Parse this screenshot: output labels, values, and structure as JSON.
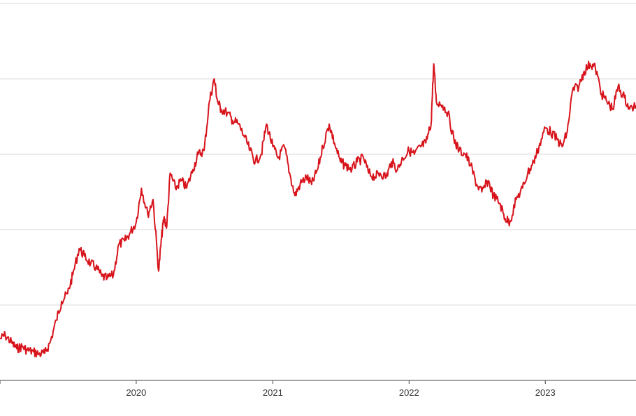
{
  "chart_data": {
    "type": "line",
    "title": "",
    "xlabel": "",
    "ylabel": "",
    "x_ticks": [
      "2020",
      "2021",
      "2022",
      "2023"
    ],
    "xlim": [
      "2019-01-01",
      "2023-09-01"
    ],
    "ylim": [
      0,
      5
    ],
    "grid": true,
    "legend": "none",
    "line_color": "#d7141c",
    "grid_color": "#d9d9d9",
    "axis_color": "#444444",
    "series": [
      {
        "x": [
          "2019-01-01",
          "2019-01-15",
          "2019-02-01",
          "2019-02-15",
          "2019-03-01",
          "2019-03-15",
          "2019-04-01",
          "2019-04-15",
          "2019-05-01",
          "2019-05-15",
          "2019-06-01",
          "2019-06-15",
          "2019-07-01",
          "2019-07-15",
          "2019-08-01",
          "2019-08-15",
          "2019-09-01",
          "2019-09-15",
          "2019-10-01",
          "2019-10-15",
          "2019-11-01",
          "2019-11-15",
          "2019-12-01",
          "2019-12-15",
          "2020-01-01",
          "2020-01-15",
          "2020-02-01",
          "2020-02-15",
          "2020-03-01",
          "2020-03-09",
          "2020-03-15",
          "2020-03-23",
          "2020-04-01",
          "2020-04-15",
          "2020-05-01",
          "2020-05-15",
          "2020-06-01",
          "2020-06-15",
          "2020-07-01",
          "2020-07-15",
          "2020-07-28",
          "2020-08-06",
          "2020-08-15",
          "2020-09-01",
          "2020-09-15",
          "2020-10-01",
          "2020-10-15",
          "2020-11-01",
          "2020-11-15",
          "2020-12-01",
          "2020-12-15",
          "2021-01-01",
          "2021-01-15",
          "2021-02-01",
          "2021-02-15",
          "2021-03-01",
          "2021-03-15",
          "2021-04-01",
          "2021-04-15",
          "2021-05-01",
          "2021-05-15",
          "2021-06-01",
          "2021-06-15",
          "2021-07-01",
          "2021-07-15",
          "2021-08-01",
          "2021-08-15",
          "2021-09-01",
          "2021-09-15",
          "2021-10-01",
          "2021-10-15",
          "2021-11-01",
          "2021-11-15",
          "2021-12-01",
          "2021-12-15",
          "2022-01-01",
          "2022-01-15",
          "2022-02-01",
          "2022-02-15",
          "2022-03-01",
          "2022-03-08",
          "2022-03-15",
          "2022-04-01",
          "2022-04-15",
          "2022-05-01",
          "2022-05-15",
          "2022-06-01",
          "2022-06-15",
          "2022-07-01",
          "2022-07-15",
          "2022-08-01",
          "2022-08-15",
          "2022-09-01",
          "2022-09-15",
          "2022-09-28",
          "2022-10-15",
          "2022-11-01",
          "2022-11-15",
          "2022-12-01",
          "2022-12-15",
          "2023-01-01",
          "2023-01-15",
          "2023-02-01",
          "2023-02-15",
          "2023-03-01",
          "2023-03-15",
          "2023-04-01",
          "2023-04-15",
          "2023-05-01",
          "2023-05-15",
          "2023-06-01",
          "2023-06-15",
          "2023-07-01",
          "2023-07-15",
          "2023-08-01",
          "2023-08-15",
          "2023-09-01"
        ],
        "y": [
          0.55,
          0.6,
          0.5,
          0.42,
          0.45,
          0.4,
          0.38,
          0.35,
          0.36,
          0.5,
          0.8,
          1.05,
          1.15,
          1.4,
          1.75,
          1.65,
          1.55,
          1.5,
          1.38,
          1.35,
          1.4,
          1.8,
          1.85,
          1.95,
          2.1,
          2.55,
          2.2,
          2.4,
          1.45,
          1.9,
          2.15,
          2.05,
          2.75,
          2.55,
          2.65,
          2.55,
          2.8,
          3.0,
          3.05,
          3.7,
          4.0,
          3.7,
          3.6,
          3.55,
          3.45,
          3.4,
          3.25,
          3.05,
          2.9,
          3.0,
          3.4,
          3.1,
          2.95,
          3.1,
          2.75,
          2.45,
          2.6,
          2.7,
          2.6,
          2.8,
          3.1,
          3.4,
          3.15,
          2.9,
          2.85,
          2.8,
          2.9,
          2.95,
          2.75,
          2.7,
          2.75,
          2.7,
          2.9,
          2.8,
          2.95,
          3.05,
          3.0,
          3.1,
          3.15,
          3.4,
          4.2,
          3.7,
          3.65,
          3.55,
          3.2,
          3.05,
          3.0,
          2.85,
          2.6,
          2.5,
          2.65,
          2.45,
          2.35,
          2.15,
          2.1,
          2.4,
          2.55,
          2.75,
          2.9,
          3.1,
          3.35,
          3.3,
          3.2,
          3.1,
          3.3,
          3.85,
          3.9,
          4.1,
          4.2,
          4.15,
          3.8,
          3.7,
          3.6,
          3.9,
          3.75,
          3.6,
          3.65
        ]
      }
    ]
  }
}
